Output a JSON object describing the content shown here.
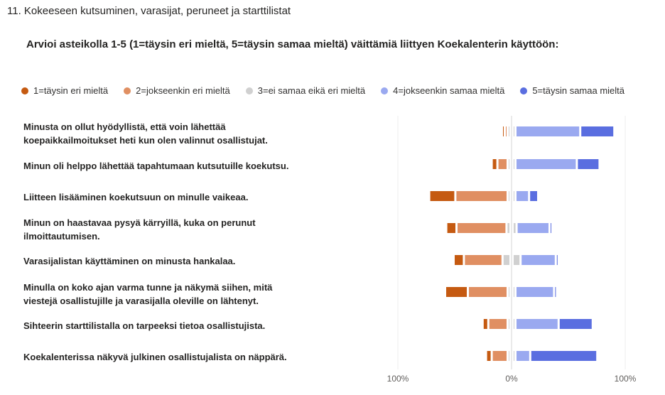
{
  "question": {
    "title": "11. Kokeeseen kutsuminen, varasijat, peruneet ja starttilistat"
  },
  "chart_data": {
    "type": "bar",
    "subtype": "diverging-stacked-bar",
    "title": "Arvioi asteikolla 1-5 (1=täysin eri mieltä, 5=täysin samaa mieltä) väittämiä liittyen Koekalenterin käyttöön:",
    "legend_position": "top",
    "series": [
      {
        "name": "1=täysin eri mieltä",
        "color": "#c55a11"
      },
      {
        "name": "2=jokseenkin eri mieltä",
        "color": "#e08f62"
      },
      {
        "name": "3=ei samaa eikä eri mieltä",
        "color": "#d0d0d0"
      },
      {
        "name": "4=jokseenkin samaa mieltä",
        "color": "#9aa9f0"
      },
      {
        "name": "5=täysin samaa mieltä",
        "color": "#5a6ee0"
      }
    ],
    "categories": [
      "Minusta on ollut hyödyllistä, että voin lähettää koepaikkailmoitukset heti kun olen valinnut osallistujat.",
      "Minun oli helppo lähettää tapahtumaan kutsutuille koekutsu.",
      "Liitteen lisääminen koekutsuun on minulle vaikeaa.",
      "Minun on haastavaa pysyä kärryillä, kuka on perunut ilmoittautumisen.",
      "Varasijalistan käyttäminen on minusta hankalaa.",
      "Minulla on koko ajan varma tunne ja näkymä siihen, mitä viestejä osallistujille ja varasijalla oleville on lähtenyt.",
      "Sihteerin starttilistalla on tarpeeksi tietoa osallistujista.",
      "Koekalenterissa näkyvä julkinen osallistujalista on näppärä."
    ],
    "values": [
      [
        1,
        1,
        5,
        57,
        30
      ],
      [
        5,
        9,
        3,
        54,
        20
      ],
      [
        23,
        46,
        3,
        12,
        8
      ],
      [
        9,
        44,
        7,
        29,
        2
      ],
      [
        9,
        34,
        14,
        31,
        2
      ],
      [
        20,
        35,
        5,
        34,
        2
      ],
      [
        5,
        17,
        5,
        38,
        30
      ],
      [
        5,
        14,
        5,
        13,
        59
      ]
    ],
    "xlim": [
      -100,
      100
    ],
    "xticks": [
      "100%",
      "0%",
      "100%"
    ]
  }
}
